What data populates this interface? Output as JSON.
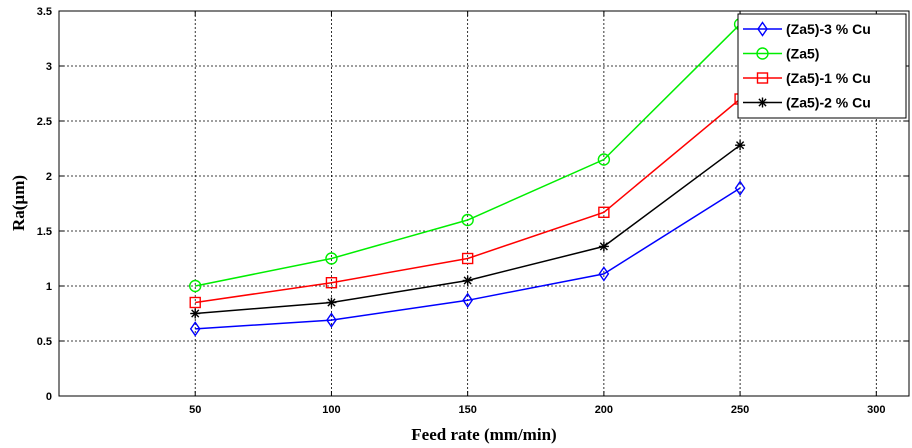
{
  "chart_data": {
    "type": "line",
    "xlabel": "Feed rate (mm/min)",
    "ylabel": "Ra(µm)",
    "xlim": [
      0,
      312
    ],
    "ylim": [
      0,
      3.5
    ],
    "xticks": [
      50,
      100,
      150,
      200,
      250,
      300
    ],
    "yticks": [
      0,
      0.5,
      1,
      1.5,
      2,
      2.5,
      3,
      3.5
    ],
    "xtick_labels": [
      "50",
      "100",
      "150",
      "200",
      "250",
      "300"
    ],
    "ytick_labels": [
      "0",
      "0.5",
      "1",
      "1.5",
      "2",
      "2.5",
      "3",
      "3.5"
    ],
    "grid": true,
    "legend_position": "top-right",
    "x": [
      50,
      100,
      150,
      200,
      250
    ],
    "series": [
      {
        "name": "(Za5)-3 % Cu",
        "color": "#0000ff",
        "marker": "diamond",
        "values": [
          0.61,
          0.69,
          0.87,
          1.11,
          1.89
        ]
      },
      {
        "name": "(Za5)",
        "color": "#00ee00",
        "marker": "circle",
        "values": [
          1.0,
          1.25,
          1.6,
          2.15,
          3.38
        ]
      },
      {
        "name": "(Za5)-1 % Cu",
        "color": "#ff0000",
        "marker": "square",
        "values": [
          0.85,
          1.03,
          1.25,
          1.67,
          2.7
        ]
      },
      {
        "name": "(Za5)-2 % Cu",
        "color": "#000000",
        "marker": "star",
        "values": [
          0.75,
          0.85,
          1.05,
          1.36,
          2.28
        ]
      }
    ]
  }
}
